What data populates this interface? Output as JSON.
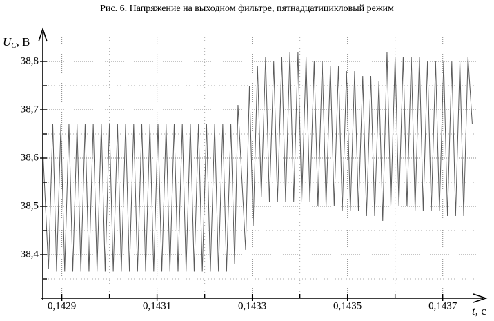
{
  "chart_data": {
    "type": "line",
    "title": "Рис. 6. Напряжение на выходном фильтре, пятнадцатицикловый режим",
    "ylabel_symbol": "U",
    "ylabel_subscript": "C",
    "ylabel_rest": ", В",
    "xlabel_symbol": "t",
    "xlabel_rest": ", с",
    "color": "#5a5a5a",
    "grid": true,
    "xlim": [
      0.14286,
      0.14377
    ],
    "ylim": [
      38.31,
      38.85
    ],
    "xticks": [
      {
        "value": 0.1429,
        "label": "0,1429"
      },
      {
        "value": 0.1431,
        "label": "0,1431"
      },
      {
        "value": 0.1433,
        "label": "0,1433"
      },
      {
        "value": 0.1435,
        "label": "0,1435"
      },
      {
        "value": 0.1437,
        "label": "0,1437"
      }
    ],
    "xminor": [
      0.143,
      0.1432,
      0.1434,
      0.1436
    ],
    "yticks": [
      {
        "value": 38.4,
        "label": "38,4"
      },
      {
        "value": 38.5,
        "label": "38,5"
      },
      {
        "value": 38.6,
        "label": "38,6"
      },
      {
        "value": 38.7,
        "label": "38,7"
      },
      {
        "value": 38.8,
        "label": "38,8"
      }
    ],
    "yminor": [
      38.35,
      38.45,
      38.55,
      38.65,
      38.75
    ],
    "x": [
      0.14286,
      0.142872,
      0.142881,
      0.142889,
      0.142898,
      0.142906,
      0.142915,
      0.142923,
      0.142932,
      0.14294,
      0.142949,
      0.142957,
      0.142966,
      0.142974,
      0.142983,
      0.142991,
      0.143,
      0.143008,
      0.143017,
      0.143025,
      0.143034,
      0.143042,
      0.143051,
      0.143059,
      0.143068,
      0.143076,
      0.143085,
      0.143093,
      0.143102,
      0.14311,
      0.143119,
      0.143127,
      0.143136,
      0.143144,
      0.143153,
      0.143161,
      0.14317,
      0.143178,
      0.143187,
      0.143195,
      0.143204,
      0.143212,
      0.143221,
      0.143229,
      0.143238,
      0.143246,
      0.143255,
      0.143263,
      0.14327,
      0.143286,
      0.143294,
      0.143302,
      0.143311,
      0.143319,
      0.143328,
      0.143336,
      0.143345,
      0.143353,
      0.143362,
      0.14337,
      0.143379,
      0.143387,
      0.143396,
      0.143404,
      0.143413,
      0.143421,
      0.14343,
      0.143438,
      0.143447,
      0.143455,
      0.143464,
      0.143472,
      0.143481,
      0.143489,
      0.143498,
      0.143506,
      0.143515,
      0.143523,
      0.143532,
      0.14354,
      0.143549,
      0.143557,
      0.143566,
      0.143574,
      0.143583,
      0.143591,
      0.1436,
      0.143608,
      0.143617,
      0.143625,
      0.143634,
      0.143642,
      0.143651,
      0.143659,
      0.143668,
      0.143676,
      0.143685,
      0.143693,
      0.143702,
      0.14371,
      0.143719,
      0.143727,
      0.143736,
      0.143744,
      0.143753,
      0.143762
    ],
    "y": [
      38.62,
      38.37,
      38.67,
      38.365,
      38.67,
      38.365,
      38.67,
      38.365,
      38.67,
      38.365,
      38.67,
      38.365,
      38.67,
      38.365,
      38.67,
      38.365,
      38.67,
      38.365,
      38.67,
      38.365,
      38.67,
      38.365,
      38.67,
      38.365,
      38.67,
      38.365,
      38.67,
      38.365,
      38.67,
      38.365,
      38.67,
      38.365,
      38.67,
      38.365,
      38.67,
      38.365,
      38.67,
      38.365,
      38.67,
      38.365,
      38.67,
      38.365,
      38.67,
      38.365,
      38.67,
      38.365,
      38.67,
      38.38,
      38.71,
      38.41,
      38.75,
      38.46,
      38.79,
      38.52,
      38.81,
      38.51,
      38.8,
      38.51,
      38.81,
      38.51,
      38.82,
      38.51,
      38.82,
      38.51,
      38.81,
      38.51,
      38.8,
      38.5,
      38.8,
      38.5,
      38.79,
      38.5,
      38.79,
      38.49,
      38.78,
      38.49,
      38.78,
      38.49,
      38.77,
      38.48,
      38.77,
      38.48,
      38.76,
      38.47,
      38.82,
      38.5,
      38.81,
      38.5,
      38.81,
      38.5,
      38.81,
      38.49,
      38.81,
      38.49,
      38.8,
      38.49,
      38.8,
      38.49,
      38.8,
      38.48,
      38.8,
      38.48,
      38.8,
      38.48,
      38.81,
      38.67
    ]
  }
}
